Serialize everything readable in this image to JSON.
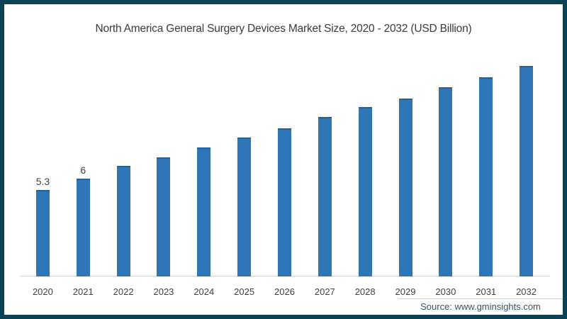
{
  "page": {
    "background": "#ffffff",
    "frame_color": "#0d4156"
  },
  "title": "North America General Surgery Devices Market Size, 2020 - 2032 (USD Billion)",
  "source": "Source: www.gminsights.com",
  "chart_data": {
    "type": "bar",
    "title": "North America General Surgery Devices Market Size, 2020 - 2032 (USD Billion)",
    "unit": "USD Billion",
    "categories": [
      "2020",
      "2021",
      "2022",
      "2023",
      "2024",
      "2025",
      "2026",
      "2027",
      "2028",
      "2029",
      "2030",
      "2031",
      "2032"
    ],
    "values": [
      5.3,
      6,
      6.8,
      7.3,
      7.9,
      8.5,
      9.1,
      9.8,
      10.4,
      10.9,
      11.6,
      12.2,
      12.9
    ],
    "data_labels": [
      "5.3",
      "6",
      "",
      "",
      "",
      "",
      "",
      "",
      "",
      "",
      "",
      "",
      ""
    ],
    "bar_color": "#2E76B5",
    "value_label_color": "#3f3f3f",
    "tick_label_color": "#404040",
    "axis_line_color": "#d9d9d9",
    "ylim": [
      0,
      13
    ],
    "grid": false,
    "legend": false,
    "xlabel": "",
    "ylabel": ""
  }
}
